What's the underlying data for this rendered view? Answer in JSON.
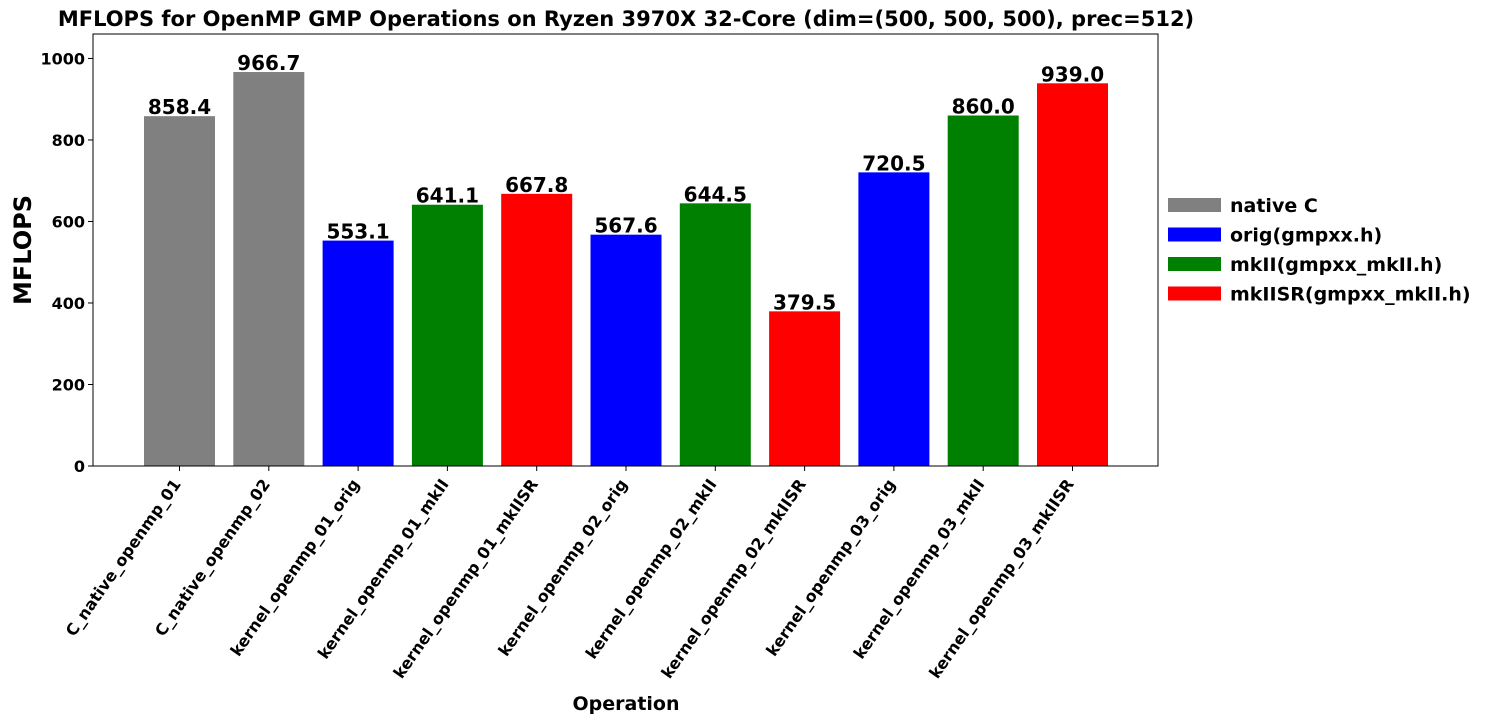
{
  "chart_data": {
    "type": "bar",
    "title": "MFLOPS for OpenMP GMP Operations on Ryzen 3970X 32-Core (dim=(500, 500, 500), prec=512)",
    "xlabel": "Operation",
    "ylabel": "MFLOPS",
    "ylim": [
      0,
      1060
    ],
    "yticks": [
      0,
      200,
      400,
      600,
      800,
      1000
    ],
    "grid": false,
    "legend_position": "right",
    "categories": [
      "C_native_openmp_01",
      "C_native_openmp_02",
      "kernel_openmp_01_orig",
      "kernel_openmp_01_mkII",
      "kernel_openmp_01_mkIISR",
      "kernel_openmp_02_orig",
      "kernel_openmp_02_mkII",
      "kernel_openmp_02_mkIISR",
      "kernel_openmp_03_orig",
      "kernel_openmp_03_mkII",
      "kernel_openmp_03_mkIISR"
    ],
    "values": [
      858.4,
      966.7,
      553.1,
      641.1,
      667.8,
      567.6,
      644.5,
      379.5,
      720.5,
      860.0,
      939.0
    ],
    "value_labels": [
      "858.4",
      "966.7",
      "553.1",
      "641.1",
      "667.8",
      "567.6",
      "644.5",
      "379.5",
      "720.5",
      "860.0",
      "939.0"
    ],
    "bar_groups": [
      0,
      0,
      1,
      2,
      3,
      1,
      2,
      3,
      1,
      2,
      3
    ],
    "legend": [
      {
        "name": "native C",
        "color": "#808080"
      },
      {
        "name": "orig(gmpxx.h)",
        "color": "#0000ff"
      },
      {
        "name": "mkII(gmpxx_mkII.h)",
        "color": "#008000"
      },
      {
        "name": "mkIISR(gmpxx_mkII.h)",
        "color": "#ff0000"
      }
    ]
  }
}
